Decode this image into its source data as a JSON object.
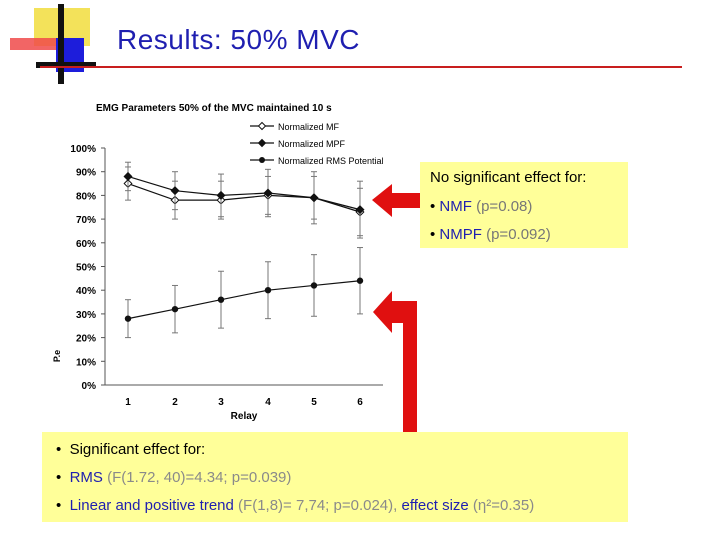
{
  "slide": {
    "title": "Results: 50% MVC"
  },
  "chart_data": {
    "type": "line",
    "title": "EMG Parameters 50% of the MVC maintained 10 s",
    "xlabel": "Relay",
    "ylabel": "P.e",
    "categories": [
      "1",
      "2",
      "3",
      "4",
      "5",
      "6"
    ],
    "y_ticks": [
      "0%",
      "10%",
      "20%",
      "30%",
      "40%",
      "50%",
      "60%",
      "70%",
      "80%",
      "90%",
      "100%"
    ],
    "ylim": [
      0,
      100
    ],
    "legend_position": "top-right",
    "grid": false,
    "series": [
      {
        "name": "Normalized MF",
        "marker": "open-diamond",
        "values": [
          85,
          78,
          78,
          80,
          79,
          73
        ],
        "error": [
          7,
          8,
          8,
          8,
          9,
          10
        ]
      },
      {
        "name": "Normalized MPF",
        "marker": "filled-diamond",
        "values": [
          88,
          82,
          80,
          81,
          79,
          74
        ],
        "error": [
          6,
          8,
          9,
          10,
          11,
          12
        ]
      },
      {
        "name": "Normalized RMS Potential",
        "marker": "filled-circle",
        "values": [
          28,
          32,
          36,
          40,
          42,
          44
        ],
        "error": [
          8,
          10,
          12,
          12,
          13,
          14
        ]
      }
    ]
  },
  "box_models": {
    "heading": "No significant effect for:",
    "items": [
      {
        "name": "NMF",
        "stat": "(p=0.08)"
      },
      {
        "name": "NMPF",
        "stat": "(p=0.092)"
      }
    ]
  },
  "box_rms": {
    "heading": "Significant effect for:",
    "rows": [
      {
        "name": "RMS",
        "stat": "(F(1.72, 40)=4.34; p=0.039)"
      },
      {
        "name": "Linear and positive trend",
        "stat": "(F(1,8)= 7,74; p=0.024),",
        "name2": "effect size",
        "stat2": "(η²=0.35)"
      }
    ]
  },
  "colors": {
    "title": "#1f1fb0",
    "rule": "#c81e1e",
    "arrow": "#e01010",
    "box": "#ffff99",
    "stat_text": "#8a8a8a"
  }
}
